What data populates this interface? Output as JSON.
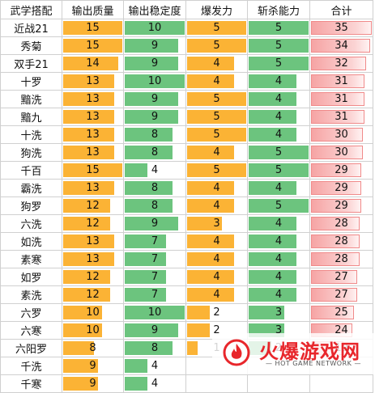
{
  "headers": [
    "武学搭配",
    "输出质量",
    "输出稳定度",
    "爆发力",
    "斩杀能力",
    "合计"
  ],
  "colors": {
    "quality": "#fbb335",
    "stability": "#6cc47e",
    "burst": "#fbb335",
    "kill": "#6cc47e",
    "total": "#f6a4a4"
  },
  "rows": [
    {
      "name": "近战21",
      "quality": 15,
      "stability": 10,
      "burst": 5,
      "kill": 5,
      "total": 35
    },
    {
      "name": "秀菊",
      "quality": 15,
      "stability": 9,
      "burst": 5,
      "kill": 5,
      "total": 34
    },
    {
      "name": "双手21",
      "quality": 14,
      "stability": 9,
      "burst": 4,
      "kill": 5,
      "total": 32
    },
    {
      "name": "十罗",
      "quality": 13,
      "stability": 10,
      "burst": 4,
      "kill": 4,
      "total": 31
    },
    {
      "name": "黯洗",
      "quality": 13,
      "stability": 9,
      "burst": 5,
      "kill": 4,
      "total": 31
    },
    {
      "name": "黯九",
      "quality": 13,
      "stability": 9,
      "burst": 5,
      "kill": 4,
      "total": 31
    },
    {
      "name": "十洗",
      "quality": 13,
      "stability": 8,
      "burst": 5,
      "kill": 4,
      "total": 30
    },
    {
      "name": "狗洗",
      "quality": 13,
      "stability": 8,
      "burst": 4,
      "kill": 5,
      "total": 30
    },
    {
      "name": "千百",
      "quality": 15,
      "stability": 4,
      "burst": 5,
      "kill": 5,
      "total": 29
    },
    {
      "name": "霸洗",
      "quality": 13,
      "stability": 8,
      "burst": 4,
      "kill": 4,
      "total": 29
    },
    {
      "name": "狗罗",
      "quality": 12,
      "stability": 8,
      "burst": 4,
      "kill": 5,
      "total": 29
    },
    {
      "name": "六洗",
      "quality": 12,
      "stability": 9,
      "burst": 3,
      "kill": 4,
      "total": 28
    },
    {
      "name": "如洗",
      "quality": 13,
      "stability": 7,
      "burst": 4,
      "kill": 4,
      "total": 28
    },
    {
      "name": "素寒",
      "quality": 13,
      "stability": 7,
      "burst": 4,
      "kill": 4,
      "total": 28
    },
    {
      "name": "如罗",
      "quality": 12,
      "stability": 7,
      "burst": 4,
      "kill": 4,
      "total": 27
    },
    {
      "name": "素洗",
      "quality": 12,
      "stability": 7,
      "burst": 4,
      "kill": 4,
      "total": 27
    },
    {
      "name": "六罗",
      "quality": 10,
      "stability": 10,
      "burst": 2,
      "kill": 3,
      "total": 25
    },
    {
      "name": "六寒",
      "quality": 10,
      "stability": 9,
      "burst": 2,
      "kill": 3,
      "total": 24
    },
    {
      "name": "六阳罗",
      "quality": 8,
      "stability": 8,
      "burst": 1,
      "kill": 2,
      "total": 19
    },
    {
      "name": "千洗",
      "quality": 9,
      "stability": 4,
      "burst": null,
      "kill": null,
      "total": null
    },
    {
      "name": "千寒",
      "quality": 9,
      "stability": 4,
      "burst": null,
      "kill": null,
      "total": null
    }
  ],
  "scale": {
    "quality_max": 15,
    "stability_max": 10,
    "burst_max": 5,
    "kill_max": 5,
    "total_max": 35
  },
  "watermark": {
    "title": "火爆游戏网",
    "subtitle": "HOT GAME NETWORK",
    "icon": "flame-logo-icon"
  }
}
